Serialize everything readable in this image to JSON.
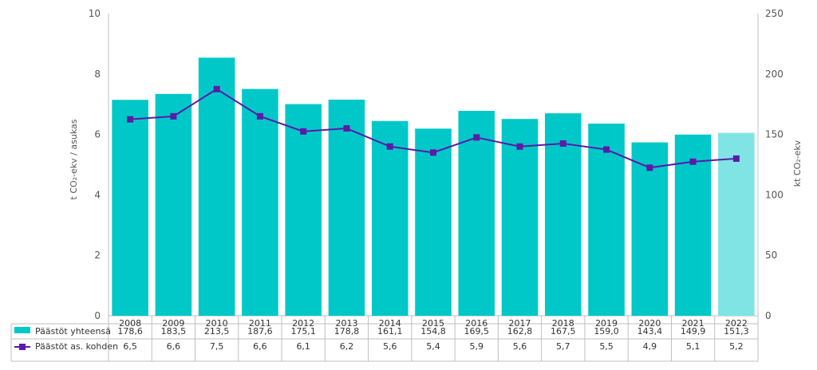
{
  "chart_data": {
    "type": "bar",
    "categories": [
      "2008",
      "2009",
      "2010",
      "2011",
      "2012",
      "2013",
      "2014",
      "2015",
      "2016",
      "2017",
      "2018",
      "2019",
      "2020",
      "2021",
      "2022"
    ],
    "series": [
      {
        "name": "Päästöt yhteensä",
        "type": "bar",
        "axis": "right",
        "values": [
          178.6,
          183.5,
          213.5,
          187.6,
          175.1,
          178.8,
          161.1,
          154.8,
          169.5,
          162.8,
          167.5,
          159.0,
          143.4,
          149.9,
          151.3
        ],
        "labels": [
          "178,6",
          "183,5",
          "213,5",
          "187,6",
          "175,1",
          "178,8",
          "161,1",
          "154,8",
          "169,5",
          "162,8",
          "167,5",
          "159,0",
          "143,4",
          "149,9",
          "151,3"
        ],
        "color": "#00C8C8",
        "highlight_last_color": "#80E4E4"
      },
      {
        "name": "Päästöt as. kohden",
        "type": "line",
        "axis": "left",
        "values": [
          6.5,
          6.6,
          7.5,
          6.6,
          6.1,
          6.2,
          5.6,
          5.4,
          5.9,
          5.6,
          5.7,
          5.5,
          4.9,
          5.1,
          5.2
        ],
        "labels": [
          "6,5",
          "6,6",
          "7,5",
          "6,6",
          "6,1",
          "6,2",
          "5,6",
          "5,4",
          "5,9",
          "5,6",
          "5,7",
          "5,5",
          "4,9",
          "5,1",
          "5,2"
        ],
        "color": "#5B1AA8"
      }
    ],
    "ylabel_left": "t CO₂-ekv / asukas",
    "ylabel_right": "kt CO₂-ekv",
    "ylim_left": [
      0,
      10
    ],
    "ylim_right": [
      0,
      250
    ],
    "yticks_left": [
      "0",
      "2",
      "4",
      "6",
      "8",
      "10"
    ],
    "yticks_right": [
      "0",
      "50",
      "100",
      "150",
      "200",
      "250"
    ],
    "grid": false,
    "legend": "table-below"
  }
}
